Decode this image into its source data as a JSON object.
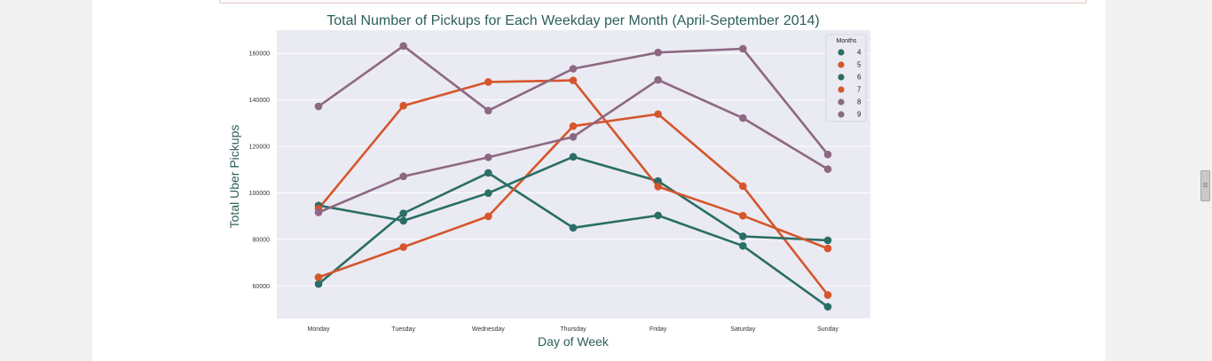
{
  "chart_data": {
    "type": "line",
    "title": "Total Number of Pickups for Each Weekday per Month (April-September 2014)",
    "xlabel": "Day of Week",
    "ylabel": "Total Uber Pickups",
    "categories": [
      "Monday",
      "Tuesday",
      "Wednesday",
      "Thursday",
      "Friday",
      "Saturday",
      "Sunday"
    ],
    "ylim": [
      46000,
      170000
    ],
    "yticks": [
      60000,
      80000,
      100000,
      120000,
      140000,
      160000
    ],
    "ytick_labels": [
      "60000",
      "80000",
      "100000",
      "120000",
      "140000",
      "160000"
    ],
    "grid": true,
    "legend": {
      "title": "Months",
      "position": "top-right"
    },
    "series": [
      {
        "name": "4",
        "color": "#2a6e65",
        "values": [
          60800,
          91200,
          108600,
          85000,
          90300,
          77200,
          51000
        ]
      },
      {
        "name": "5",
        "color": "#d5562c",
        "values": [
          63700,
          76700,
          89900,
          128700,
          133900,
          102900,
          56100
        ]
      },
      {
        "name": "6",
        "color": "#2a6e65",
        "values": [
          94600,
          88000,
          99900,
          115500,
          105100,
          81300,
          79600
        ]
      },
      {
        "name": "7",
        "color": "#d5562c",
        "values": [
          93200,
          137500,
          147700,
          148400,
          102700,
          90200,
          76100
        ]
      },
      {
        "name": "8",
        "color": "#8d6883",
        "values": [
          91600,
          107100,
          115300,
          124100,
          148600,
          132200,
          110200
        ]
      },
      {
        "name": "9",
        "color": "#8d6883",
        "values": [
          137200,
          163200,
          135400,
          153400,
          160400,
          162000,
          116500
        ]
      }
    ]
  }
}
